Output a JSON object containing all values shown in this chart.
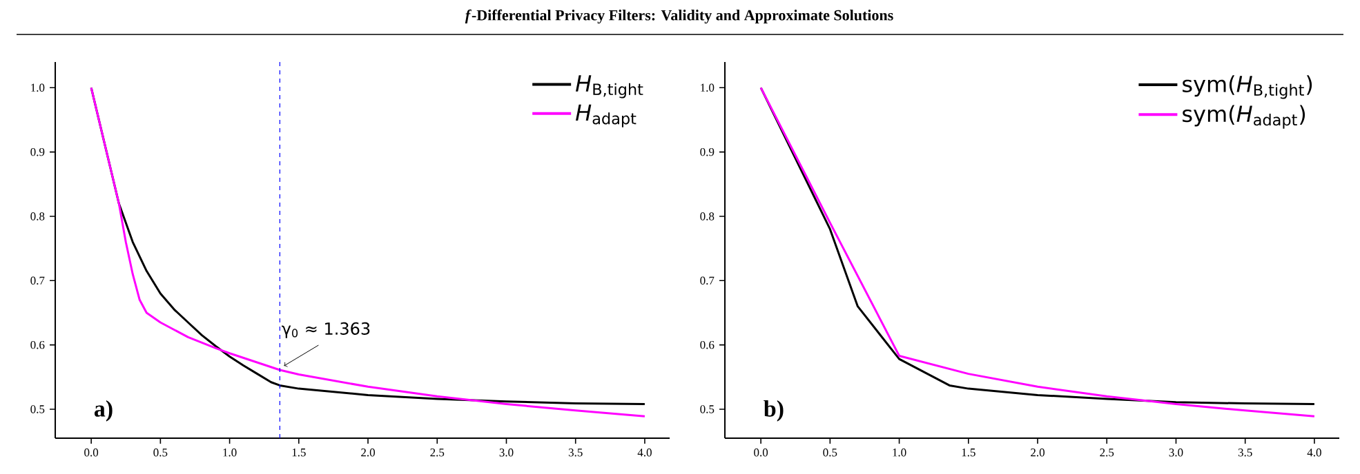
{
  "chart_data": [
    {
      "type": "line",
      "title": "*f*-Differential Privacy Filters: Validity and Approximate Solutions",
      "series": [
        {
          "name": "*H*$_{B,tight}$",
          "color": "#000000",
          "x": [
            0,
            0.1,
            0.2,
            0.3,
            0.4,
            0.5,
            0.6,
            0.7,
            0.8,
            0.9,
            1.0,
            1.1,
            1.2,
            1.3,
            1.363,
            1.5,
            2.0,
            2.5,
            3.0,
            3.5,
            4.0
          ],
          "values": [
            1.0,
            0.91,
            0.82,
            0.76,
            0.715,
            0.68,
            0.655,
            0.635,
            0.615,
            0.598,
            0.582,
            0.568,
            0.555,
            0.542,
            0.537,
            0.532,
            0.522,
            0.516,
            0.512,
            0.509,
            0.508
          ]
        },
        {
          "name": "*H*$_{adapt}$",
          "color": "#ff00ff",
          "x": [
            0,
            0.1,
            0.2,
            0.25,
            0.3,
            0.35,
            0.4,
            0.5,
            0.7,
            0.9,
            1.0,
            1.363,
            1.5,
            2.0,
            2.5,
            3.0,
            3.5,
            4.0
          ],
          "values": [
            1.0,
            0.91,
            0.82,
            0.76,
            0.71,
            0.67,
            0.65,
            0.635,
            0.612,
            0.595,
            0.587,
            0.561,
            0.554,
            0.535,
            0.52,
            0.508,
            0.498,
            0.489
          ]
        }
      ],
      "xlim": [
        -0.26,
        4.18
      ],
      "ylim": [
        0.455,
        1.04
      ],
      "xticks": [
        {
          "value": 0,
          "label": "0.0"
        },
        {
          "value": 0.5,
          "label": "0.5"
        },
        {
          "value": 1,
          "label": "1.0"
        },
        {
          "value": 1.5,
          "label": "1.5"
        },
        {
          "value": 2,
          "label": "2.0"
        },
        {
          "value": 2.5,
          "label": "2.5"
        },
        {
          "value": 3,
          "label": "3.0"
        },
        {
          "value": 3.5,
          "label": "3.5"
        },
        {
          "value": 4,
          "label": "4.0"
        }
      ],
      "yticks": [
        0.5,
        0.6,
        0.7,
        0.8,
        0.9,
        {
          "value": 1,
          "label": "1.0"
        }
      ],
      "ref_lines": [
        {
          "axis": "x",
          "value": 1.363,
          "color": "#0000ff",
          "line_style": "dashed"
        }
      ],
      "annotations": [
        {
          "text": "γ$_{0}$ ≈ 1.363",
          "x": 1.363,
          "y": 0.561
        },
        "**a)**"
      ],
      "legend": "top right"
    },
    {
      "type": "line",
      "series": [
        {
          "name": "sym(*H*$_{B,tight}$)",
          "color": "#000000",
          "x": [
            0,
            0.5,
            0.7,
            1.0,
            1.363,
            1.5,
            2.0,
            2.5,
            3.0,
            3.5,
            4.0
          ],
          "values": [
            1.0,
            0.78,
            0.66,
            0.578,
            0.537,
            0.532,
            0.522,
            0.516,
            0.511,
            0.509,
            0.508
          ]
        },
        {
          "name": "sym(*H*$_{adapt}$)",
          "color": "#ff00ff",
          "x": [
            0,
            0.5,
            1.0,
            1.5,
            2.0,
            2.5,
            3.0,
            3.5,
            4.0
          ],
          "values": [
            1.0,
            0.79,
            0.583,
            0.555,
            0.535,
            0.52,
            0.508,
            0.498,
            0.489
          ]
        }
      ],
      "xlim": [
        -0.26,
        4.18
      ],
      "ylim": [
        0.455,
        1.04
      ],
      "xticks": [
        {
          "value": 0,
          "label": "0.0"
        },
        {
          "value": 0.5,
          "label": "0.5"
        },
        {
          "value": 1,
          "label": "1.0"
        },
        {
          "value": 1.5,
          "label": "1.5"
        },
        {
          "value": 2,
          "label": "2.0"
        },
        {
          "value": 2.5,
          "label": "2.5"
        },
        {
          "value": 3,
          "label": "3.0"
        },
        {
          "value": 3.5,
          "label": "3.5"
        },
        {
          "value": 4,
          "label": "4.0"
        }
      ],
      "yticks": [
        0.5,
        0.6,
        0.7,
        0.8,
        0.9,
        {
          "value": 1,
          "label": "1.0"
        }
      ],
      "annotations": [
        "**b)**"
      ],
      "legend": "top right"
    }
  ]
}
